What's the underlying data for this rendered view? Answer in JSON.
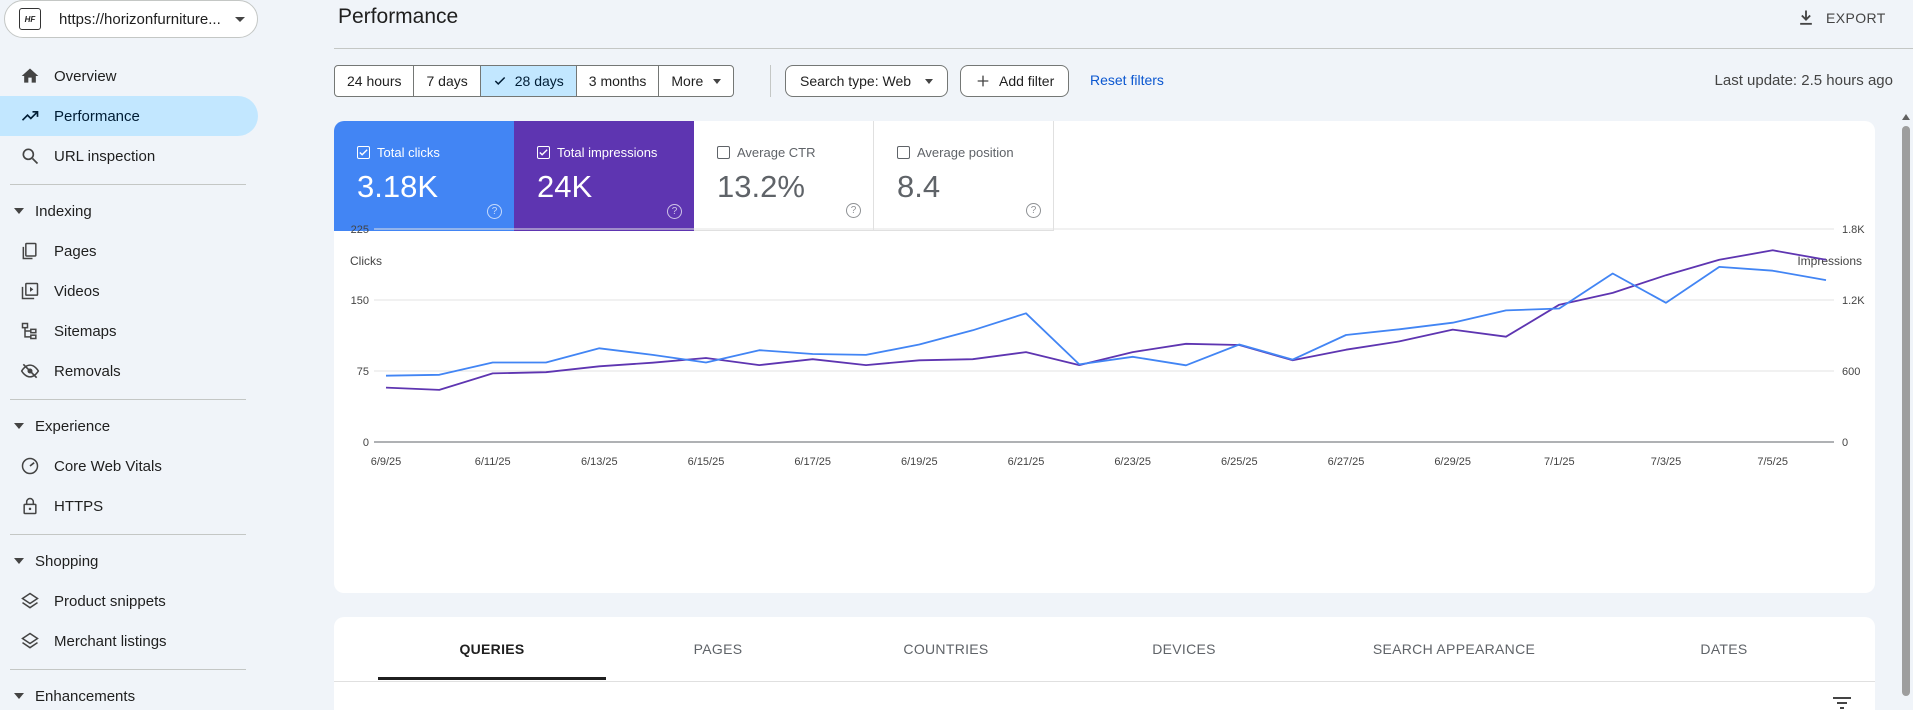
{
  "property": {
    "url": "https://horizonfurniture...",
    "logo": "HF"
  },
  "sidebar": {
    "overview": "Overview",
    "performance": "Performance",
    "url_inspection": "URL inspection",
    "indexing": "Indexing",
    "pages": "Pages",
    "videos": "Videos",
    "sitemaps": "Sitemaps",
    "removals": "Removals",
    "experience": "Experience",
    "core_web_vitals": "Core Web Vitals",
    "https": "HTTPS",
    "shopping": "Shopping",
    "product_snippets": "Product snippets",
    "merchant_listings": "Merchant listings",
    "enhancements": "Enhancements"
  },
  "header": {
    "title": "Performance",
    "export": "EXPORT"
  },
  "filters": {
    "ranges": [
      "24 hours",
      "7 days",
      "28 days",
      "3 months",
      "More"
    ],
    "selected_range": "28 days",
    "search_type": "Search type: Web",
    "add_filter": "Add filter",
    "reset": "Reset filters",
    "last_update": "Last update: 2.5 hours ago"
  },
  "metrics": {
    "clicks": {
      "label": "Total clicks",
      "value": "3.18K",
      "checked": true
    },
    "impressions": {
      "label": "Total impressions",
      "value": "24K",
      "checked": true
    },
    "ctr": {
      "label": "Average CTR",
      "value": "13.2%",
      "checked": false
    },
    "position": {
      "label": "Average position",
      "value": "8.4",
      "checked": false
    },
    "help": "?"
  },
  "colors": {
    "clicks": "#4285f4",
    "impressions": "#5e35b1"
  },
  "chart_data": {
    "type": "line",
    "x": [
      "6/9/25",
      "6/10/25",
      "6/11/25",
      "6/12/25",
      "6/13/25",
      "6/14/25",
      "6/15/25",
      "6/16/25",
      "6/17/25",
      "6/18/25",
      "6/19/25",
      "6/20/25",
      "6/21/25",
      "6/22/25",
      "6/23/25",
      "6/24/25",
      "6/25/25",
      "6/26/25",
      "6/27/25",
      "6/28/25",
      "6/29/25",
      "6/30/25",
      "7/1/25",
      "7/2/25",
      "7/3/25",
      "7/4/25",
      "7/5/25",
      "7/6/25"
    ],
    "x_tick_labels": [
      "6/9/25",
      "6/11/25",
      "6/13/25",
      "6/15/25",
      "6/17/25",
      "6/19/25",
      "6/21/25",
      "6/23/25",
      "6/25/25",
      "6/27/25",
      "6/29/25",
      "7/1/25",
      "7/3/25",
      "7/5/25"
    ],
    "series": [
      {
        "name": "Clicks",
        "axis": "left",
        "values": [
          70,
          71,
          84,
          84,
          99,
          92,
          84,
          97,
          93,
          92,
          103,
          118,
          136,
          82,
          90,
          81,
          103,
          87,
          113,
          119,
          126,
          139,
          141,
          178,
          147,
          185,
          181,
          171
        ]
      },
      {
        "name": "Impressions",
        "axis": "right",
        "values": [
          460,
          440,
          580,
          590,
          640,
          670,
          710,
          650,
          700,
          650,
          690,
          700,
          760,
          650,
          760,
          830,
          820,
          690,
          780,
          850,
          950,
          890,
          1160,
          1260,
          1410,
          1540,
          1620,
          1540
        ]
      }
    ],
    "ylabel_left": "Clicks",
    "ylabel_right": "Impressions",
    "ylim_left": [
      0,
      225
    ],
    "ylim_right": [
      0,
      1800
    ],
    "yticks_left": [
      "0",
      "75",
      "150",
      "225"
    ],
    "yticks_right": [
      "0",
      "600",
      "1.2K",
      "1.8K"
    ],
    "grid": true
  },
  "tabs": [
    "QUERIES",
    "PAGES",
    "COUNTRIES",
    "DEVICES",
    "SEARCH APPEARANCE",
    "DATES"
  ],
  "active_tab": "QUERIES"
}
